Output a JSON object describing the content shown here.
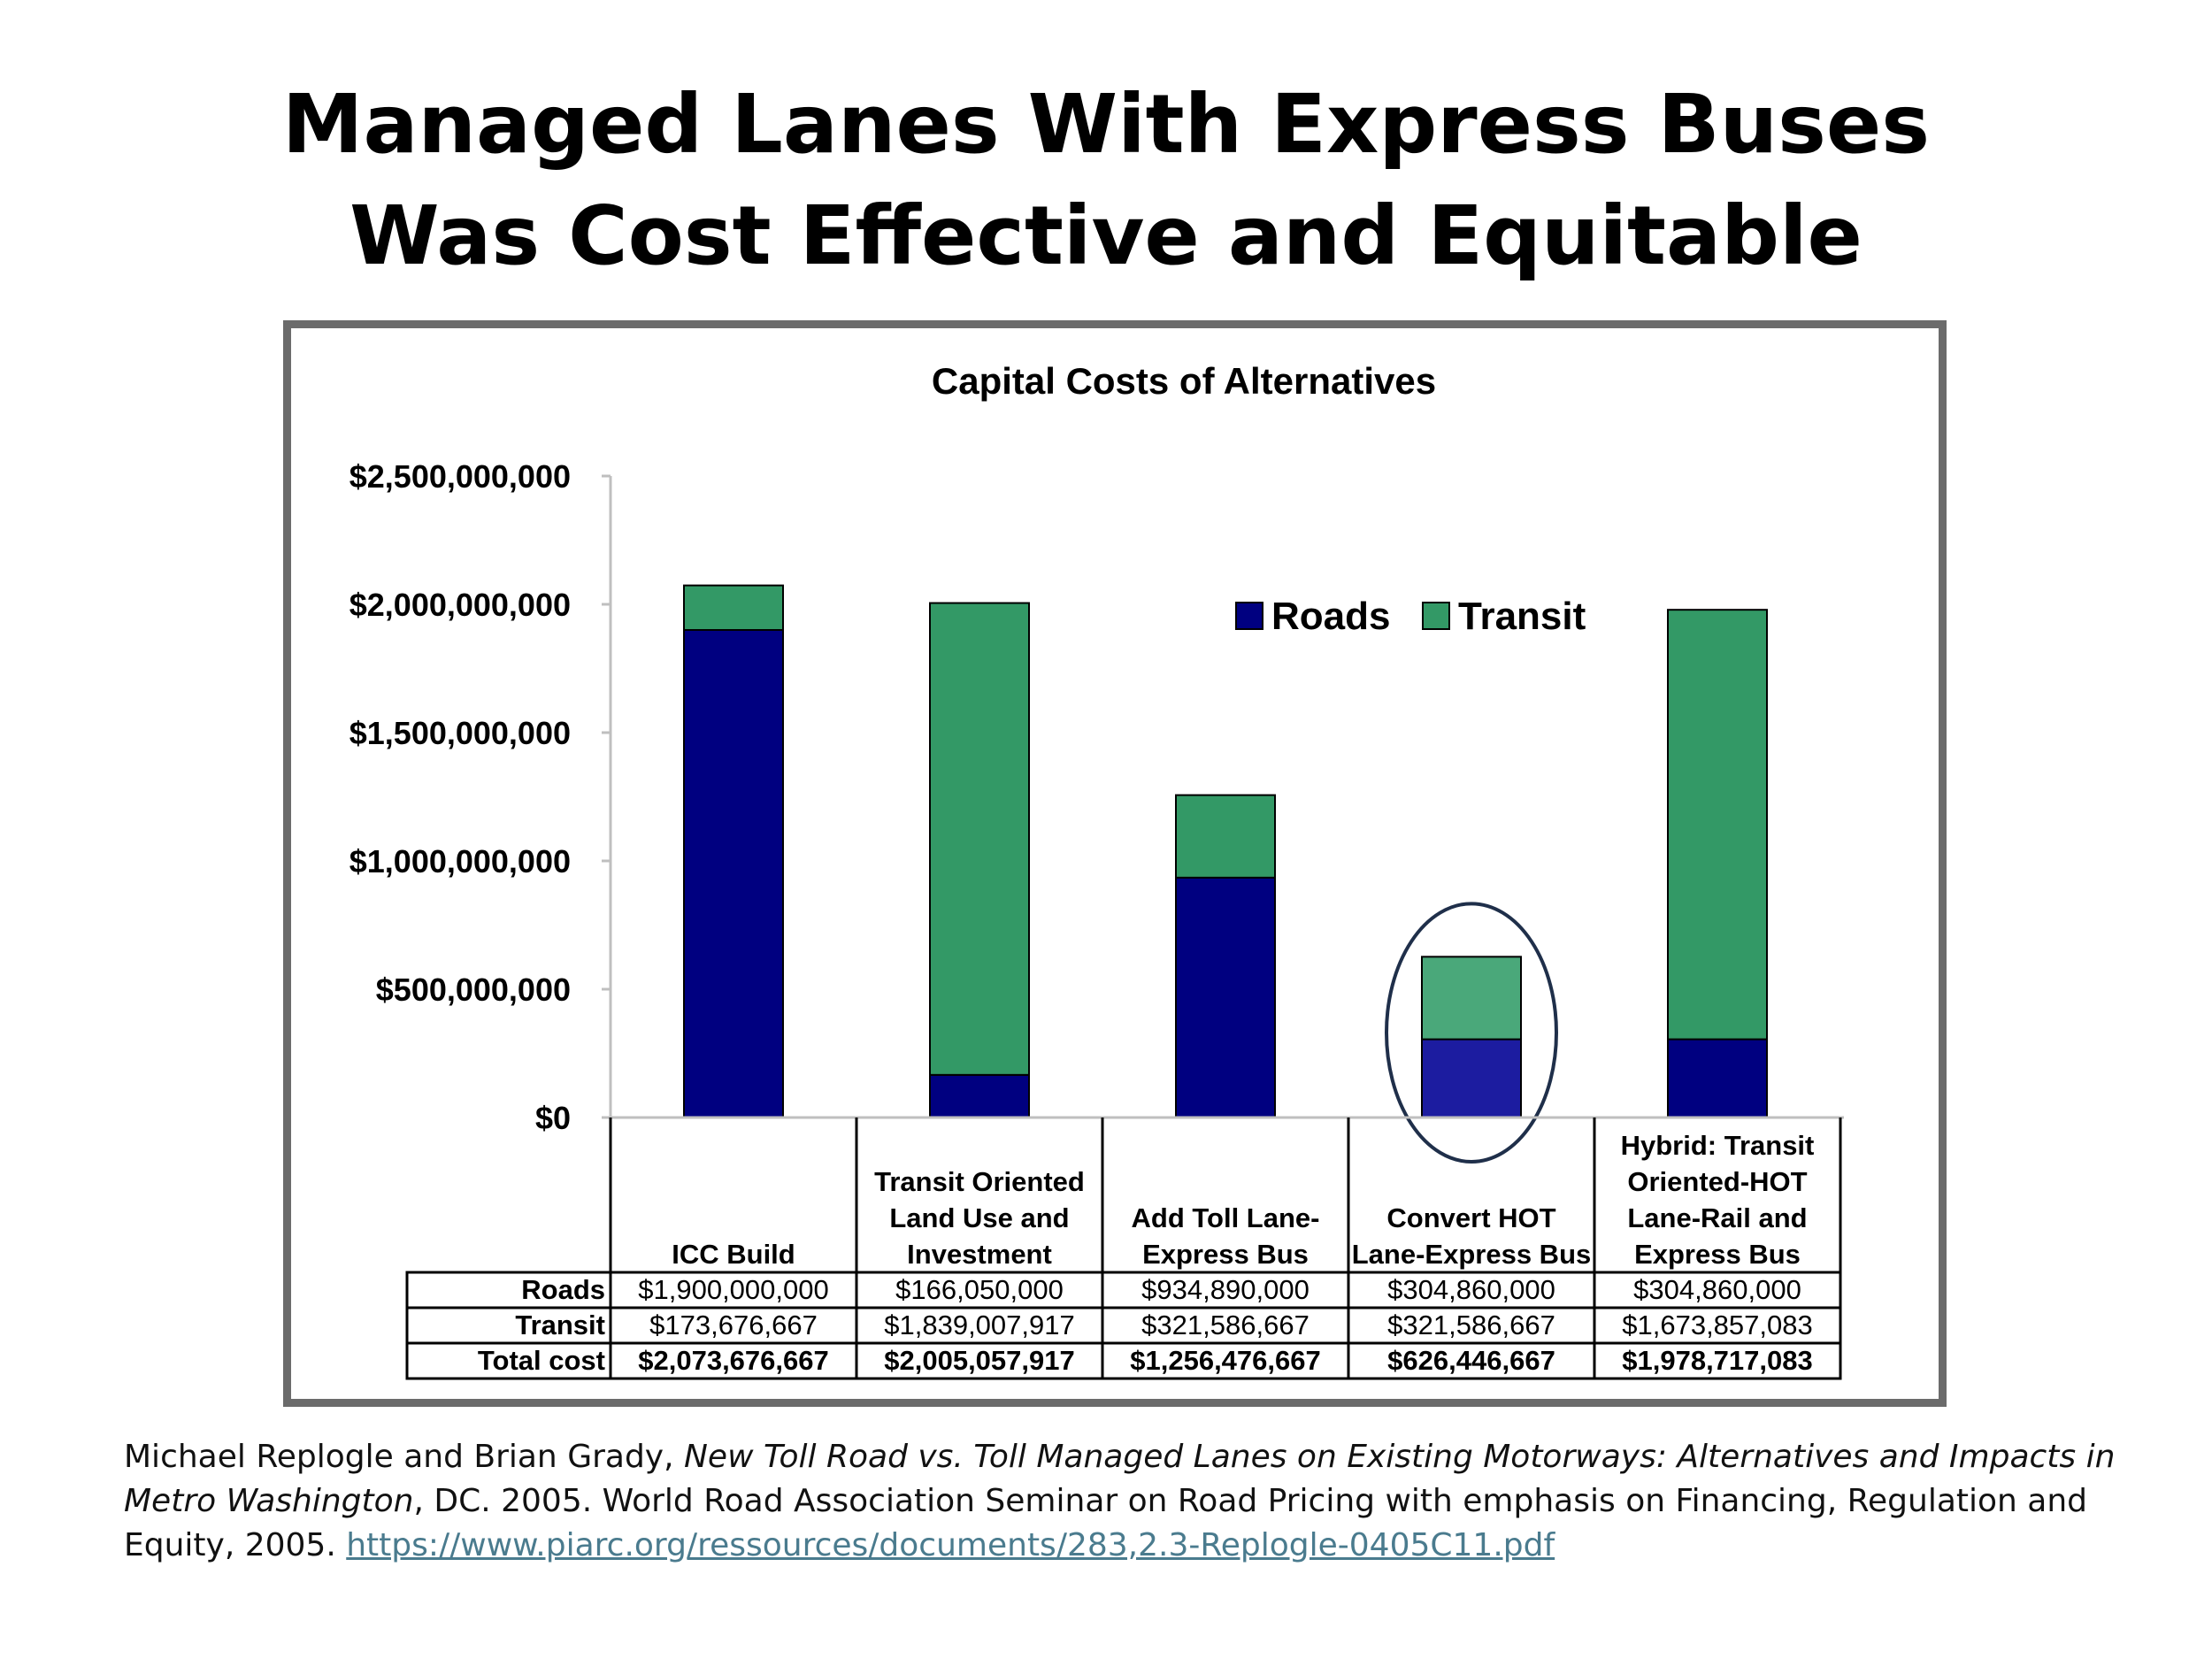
{
  "slide": {
    "title_line1": "Managed Lanes With Express Buses",
    "title_line2": "Was Cost Effective and Equitable"
  },
  "citation": {
    "authors": "Michael Replogle and Brian Grady, ",
    "work_title": "New Toll Road vs. Toll Managed Lanes on Existing Motorways: Alternatives and Impacts in Metro Washington",
    "details": ", DC. 2005. World Road Association Seminar on Road Pricing with emphasis on Financing, Regulation and Equity, 2005. ",
    "url": "https://www.piarc.org/ressources/documents/283,2.3-Replogle-0405C11.pdf"
  },
  "colors": {
    "roads": "#000080",
    "transit": "#339966",
    "highlight_transit": "#4aa87a",
    "highlight_roads": "#1c1ca0",
    "frame": "#6b6b6b"
  },
  "chart_data": {
    "type": "bar",
    "stacked": true,
    "title": "Capital Costs of Alternatives",
    "xlabel": "",
    "ylabel": "",
    "ylim": [
      0,
      2500000000
    ],
    "yticks": [
      0,
      500000000,
      1000000000,
      1500000000,
      2000000000,
      2500000000
    ],
    "ytick_labels": [
      "$0",
      "$500,000,000",
      "$1,000,000,000",
      "$1,500,000,000",
      "$2,000,000,000",
      "$2,500,000,000"
    ],
    "legend_position": "top-right",
    "highlighted_category_index": 3,
    "categories": [
      [
        "ICC Build"
      ],
      [
        "Transit Oriented",
        "Land Use and",
        "Investment"
      ],
      [
        "Add Toll Lane-",
        "Express Bus"
      ],
      [
        "Convert HOT",
        "Lane-Express Bus"
      ],
      [
        "Hybrid: Transit",
        "Oriented-HOT",
        "Lane-Rail and",
        "Express Bus"
      ]
    ],
    "series": [
      {
        "name": "Roads",
        "values": [
          1900000000,
          166050000,
          934890000,
          304860000,
          304860000
        ]
      },
      {
        "name": "Transit",
        "values": [
          173676667,
          1839007917,
          321586667,
          321586667,
          1673857083
        ]
      }
    ],
    "table": {
      "rows": [
        {
          "label": "Roads",
          "bold": false,
          "values": [
            "$1,900,000,000",
            "$166,050,000",
            "$934,890,000",
            "$304,860,000",
            "$304,860,000"
          ]
        },
        {
          "label": "Transit",
          "bold": false,
          "values": [
            "$173,676,667",
            "$1,839,007,917",
            "$321,586,667",
            "$321,586,667",
            "$1,673,857,083"
          ]
        },
        {
          "label": "Total cost",
          "bold": true,
          "values": [
            "$2,073,676,667",
            "$2,005,057,917",
            "$1,256,476,667",
            "$626,446,667",
            "$1,978,717,083"
          ]
        }
      ]
    }
  }
}
